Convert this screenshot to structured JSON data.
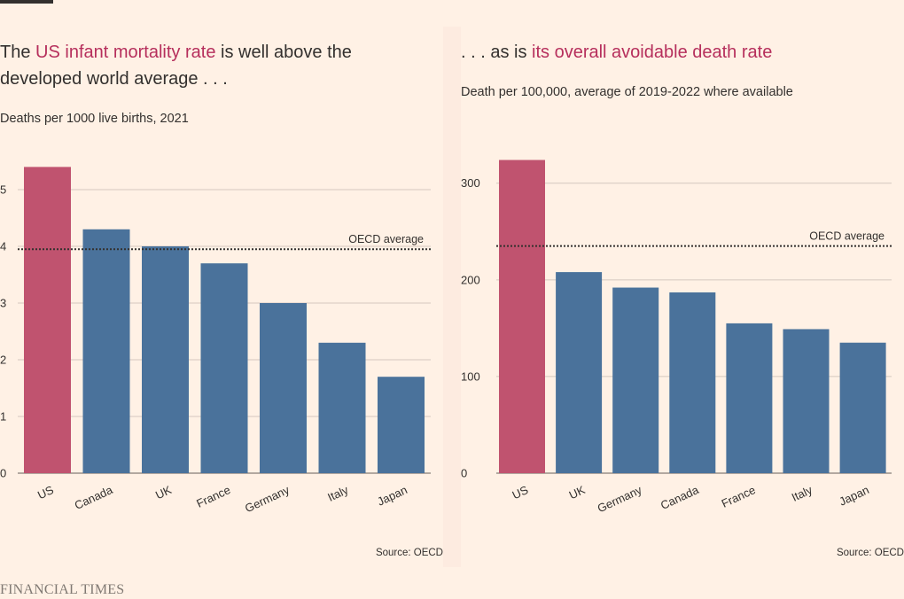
{
  "brand": "FINANCIAL TIMES",
  "colors": {
    "highlight": "#c0536f",
    "bar": "#4a729b",
    "grid": "#d4c8bf",
    "average_line": "#33302e",
    "text_highlight": "#b62f5c"
  },
  "chart_data": [
    {
      "type": "bar",
      "title_pre": "The ",
      "title_highlight": "US infant mortality rate",
      "title_post": " is well above the developed world average . . .",
      "subtitle": "Deaths per 1000 live births, 2021",
      "categories": [
        "US",
        "Canada",
        "UK",
        "France",
        "Germany",
        "Italy",
        "Japan"
      ],
      "values": [
        5.4,
        4.3,
        4.0,
        3.7,
        3.0,
        2.3,
        1.7
      ],
      "highlight_category": "US",
      "ylim": [
        0,
        5.5
      ],
      "yticks": [
        0,
        1,
        2,
        3,
        4,
        5
      ],
      "reference_line": {
        "label": "OECD average",
        "value": 3.95
      },
      "grid": true,
      "source": "Source: OECD"
    },
    {
      "type": "bar",
      "title_pre": ". . . as is ",
      "title_highlight": "its overall avoidable death rate",
      "title_post": "",
      "subtitle": "Death per 100,000, average of 2019-2022 where available",
      "categories": [
        "US",
        "UK",
        "Germany",
        "Canada",
        "France",
        "Italy",
        "Japan"
      ],
      "values": [
        324,
        208,
        192,
        187,
        155,
        149,
        135
      ],
      "highlight_category": "US",
      "ylim": [
        0,
        330
      ],
      "yticks": [
        0,
        100,
        200,
        300
      ],
      "reference_line": {
        "label": "OECD average",
        "value": 235
      },
      "grid": true,
      "source": "Source: OECD"
    }
  ]
}
